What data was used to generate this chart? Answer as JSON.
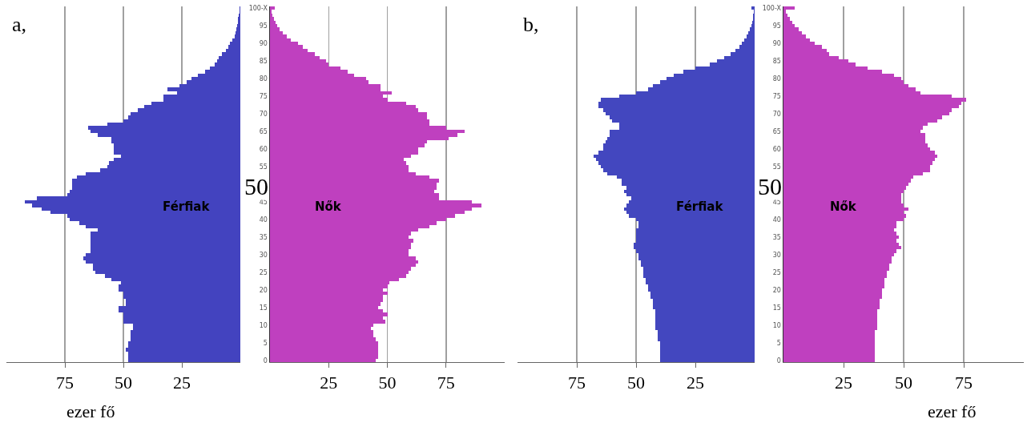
{
  "chart_data": [
    {
      "type": "bar",
      "orientation": "horizontal",
      "tick_labels": "x",
      "grid": "x",
      "xlabel": "ezer fő",
      "annotations": [
        "a,"
      ],
      "categories": [
        null,
        null,
        null,
        null,
        null,
        null,
        null,
        null,
        null,
        null,
        null,
        null,
        null,
        null,
        null,
        null,
        null,
        null,
        null,
        null,
        null,
        null,
        null,
        null,
        null,
        null,
        null,
        null,
        null,
        null,
        null,
        null,
        null,
        null,
        null,
        null,
        null,
        null,
        null,
        null,
        null,
        null,
        null,
        null,
        null,
        null,
        null,
        null,
        null,
        null,
        null,
        null,
        null,
        null,
        null,
        null,
        null,
        null,
        null,
        null,
        null,
        null,
        null,
        null,
        null,
        null,
        null,
        null,
        null,
        null,
        null,
        null,
        null,
        null,
        null,
        null,
        null,
        null,
        null,
        null,
        null,
        null,
        null,
        null,
        null,
        null,
        null,
        null,
        null,
        null,
        null,
        null,
        null,
        null,
        null,
        null,
        null,
        null,
        null,
        null,
        null
      ],
      "xlim": [
        100,
        0
      ],
      "xticks": [
        75,
        50,
        25
      ],
      "series": [
        {
          "name": "Férfiak",
          "color": "#4343bf",
          "values": [
            0.3,
            0.5,
            0.7,
            0.9,
            1.1,
            1.4,
            1.7,
            2.1,
            2.5,
            3.4,
            4.3,
            5.1,
            6.3,
            7.8,
            9.2,
            10,
            11,
            13,
            15,
            18,
            21,
            23,
            26,
            31,
            27,
            33,
            33,
            38,
            41,
            44,
            47,
            48,
            50,
            57,
            65,
            64,
            61,
            55,
            55,
            54,
            54,
            54,
            51,
            54,
            56,
            57,
            60,
            66,
            70,
            72,
            72,
            72,
            73,
            74,
            87,
            92,
            89,
            85,
            81,
            74,
            73,
            69,
            66,
            61,
            64,
            64,
            64,
            64,
            64,
            64,
            66,
            67,
            66,
            63,
            63,
            62,
            58,
            55,
            51,
            52,
            52,
            50,
            50,
            49,
            49,
            52,
            52,
            50,
            50,
            50,
            46,
            46,
            47,
            47,
            47,
            48,
            48,
            49,
            48,
            48,
            48
          ]
        }
      ]
    },
    {
      "type": "bar",
      "orientation": "horizontal",
      "grid": "x",
      "annotations": [
        "50"
      ],
      "categories": [
        "100-X",
        null,
        null,
        null,
        null,
        "95",
        null,
        null,
        null,
        null,
        "90",
        null,
        null,
        null,
        null,
        "85",
        null,
        null,
        null,
        null,
        "80",
        null,
        null,
        null,
        null,
        "75",
        null,
        null,
        null,
        null,
        "70",
        null,
        null,
        null,
        null,
        "65",
        null,
        null,
        null,
        null,
        "60",
        null,
        null,
        null,
        null,
        "55",
        null,
        null,
        null,
        null,
        null,
        null,
        null,
        null,
        null,
        "45",
        null,
        null,
        null,
        null,
        "40",
        null,
        null,
        null,
        null,
        "35",
        null,
        null,
        null,
        null,
        "30",
        null,
        null,
        null,
        null,
        "25",
        null,
        null,
        null,
        null,
        "20",
        null,
        null,
        null,
        null,
        "15",
        null,
        null,
        null,
        null,
        "10",
        null,
        null,
        null,
        null,
        "5",
        null,
        null,
        null,
        null,
        "0"
      ],
      "xlim": [
        0,
        100
      ],
      "xticks": [
        25,
        50,
        75
      ],
      "series": [
        {
          "name": "Nők",
          "color": "#bf40bf",
          "values": [
            1.9,
            0.8,
            1.1,
            1.6,
            2.3,
            3.1,
            4.2,
            5.4,
            7.1,
            8.8,
            12,
            14,
            16,
            19,
            21,
            24,
            25,
            30,
            33,
            36,
            41,
            42,
            47,
            47,
            52,
            48,
            50,
            58,
            62,
            63,
            67,
            67,
            68,
            68,
            75,
            83,
            80,
            76,
            67,
            66,
            63,
            63,
            60,
            57,
            58,
            59,
            59,
            62,
            68,
            72,
            71,
            71,
            70,
            72,
            72,
            86,
            90,
            86,
            83,
            79,
            75,
            71,
            68,
            63,
            60,
            59,
            61,
            60,
            60,
            59,
            59,
            62,
            63,
            62,
            60,
            59,
            58,
            55,
            51,
            50,
            48,
            50,
            48,
            48,
            47,
            46,
            48,
            50,
            48,
            49,
            44,
            43,
            44,
            44,
            45,
            46,
            46,
            46,
            46,
            46,
            45
          ]
        }
      ]
    },
    {
      "type": "bar",
      "orientation": "horizontal",
      "tick_labels": "x",
      "grid": "x",
      "annotations": [
        "b,"
      ],
      "categories": [
        null,
        null,
        null,
        null,
        null,
        null,
        null,
        null,
        null,
        null,
        null,
        null,
        null,
        null,
        null,
        null,
        null,
        null,
        null,
        null,
        null,
        null,
        null,
        null,
        null,
        null,
        null,
        null,
        null,
        null,
        null,
        null,
        null,
        null,
        null,
        null,
        null,
        null,
        null,
        null,
        null,
        null,
        null,
        null,
        null,
        null,
        null,
        null,
        null,
        null,
        null,
        null,
        null,
        null,
        null,
        null,
        null,
        null,
        null,
        null,
        null,
        null,
        null,
        null,
        null,
        null,
        null,
        null,
        null,
        null,
        null,
        null,
        null,
        null,
        null,
        null,
        null,
        null,
        null,
        null,
        null,
        null,
        null,
        null,
        null,
        null,
        null,
        null,
        null,
        null,
        null,
        null,
        null,
        null,
        null,
        null,
        null,
        null,
        null,
        null,
        null
      ],
      "xlim": [
        100,
        0
      ],
      "xticks": [
        75,
        50,
        25
      ],
      "series": [
        {
          "name": "Férfiak",
          "color": "#4347bf",
          "values": [
            1.3,
            0.3,
            0.6,
            0.8,
            1.1,
            1.5,
            2,
            2.6,
            3.4,
            4.3,
            5.4,
            6.5,
            8.2,
            10,
            13,
            16,
            19,
            25,
            30,
            34,
            37,
            40,
            43,
            45,
            50,
            57,
            65,
            66,
            66,
            64,
            63,
            61,
            60,
            57,
            57,
            61,
            61,
            62,
            63,
            64,
            64,
            66,
            68,
            67,
            66,
            65,
            64,
            62,
            58,
            56,
            56,
            54,
            55,
            54,
            52,
            53,
            54,
            55,
            54,
            53,
            50,
            49,
            49,
            50,
            50,
            50,
            50,
            51,
            51,
            50,
            49,
            49,
            48,
            48,
            47,
            47,
            47,
            46,
            46,
            45,
            45,
            44,
            44,
            43,
            43,
            43,
            42,
            42,
            42,
            42,
            42,
            42,
            41,
            41,
            41,
            40,
            40,
            40,
            40,
            40,
            40
          ]
        }
      ]
    },
    {
      "type": "bar",
      "orientation": "horizontal",
      "grid": "x",
      "xlabel": "ezer fő",
      "annotations": [
        "50"
      ],
      "categories": [
        "100-X",
        null,
        null,
        null,
        null,
        "95",
        null,
        null,
        null,
        null,
        "90",
        null,
        null,
        null,
        null,
        "85",
        null,
        null,
        null,
        null,
        "80",
        null,
        null,
        null,
        null,
        "75",
        null,
        null,
        null,
        null,
        "70",
        null,
        null,
        null,
        null,
        "65",
        null,
        null,
        null,
        null,
        "60",
        null,
        null,
        null,
        null,
        "55",
        null,
        null,
        null,
        null,
        null,
        null,
        null,
        null,
        null,
        "45",
        null,
        null,
        null,
        null,
        "40",
        null,
        null,
        null,
        null,
        "35",
        null,
        null,
        null,
        null,
        "30",
        null,
        null,
        null,
        null,
        "25",
        null,
        null,
        null,
        null,
        "20",
        null,
        null,
        null,
        null,
        "15",
        null,
        null,
        null,
        null,
        "10",
        null,
        null,
        null,
        null,
        "5",
        null,
        null,
        null,
        null,
        "0"
      ],
      "xlim": [
        0,
        100
      ],
      "xticks": [
        25,
        50,
        75
      ],
      "series": [
        {
          "name": "Nők",
          "color": "#bf40bf",
          "values": [
            4.7,
            1.1,
            1.7,
            2.5,
            3.6,
            4.7,
            6.4,
            7.8,
            9.2,
            11,
            13,
            16,
            18,
            19,
            23,
            27,
            30,
            35,
            41,
            46,
            49,
            50,
            52,
            55,
            57,
            70,
            76,
            74,
            73,
            70,
            69,
            66,
            64,
            60,
            58,
            57,
            59,
            59,
            59,
            60,
            61,
            63,
            64,
            63,
            62,
            61,
            61,
            58,
            54,
            53,
            52,
            51,
            50,
            49,
            49,
            49,
            50,
            52,
            50,
            51,
            50,
            47,
            47,
            46,
            47,
            48,
            47,
            48,
            49,
            47,
            46,
            45,
            45,
            44,
            44,
            43,
            43,
            42,
            42,
            42,
            41,
            41,
            41,
            40,
            40,
            40,
            39,
            39,
            39,
            39,
            39,
            39,
            38,
            38,
            38,
            38,
            38,
            38,
            38,
            38,
            38
          ]
        }
      ]
    }
  ]
}
